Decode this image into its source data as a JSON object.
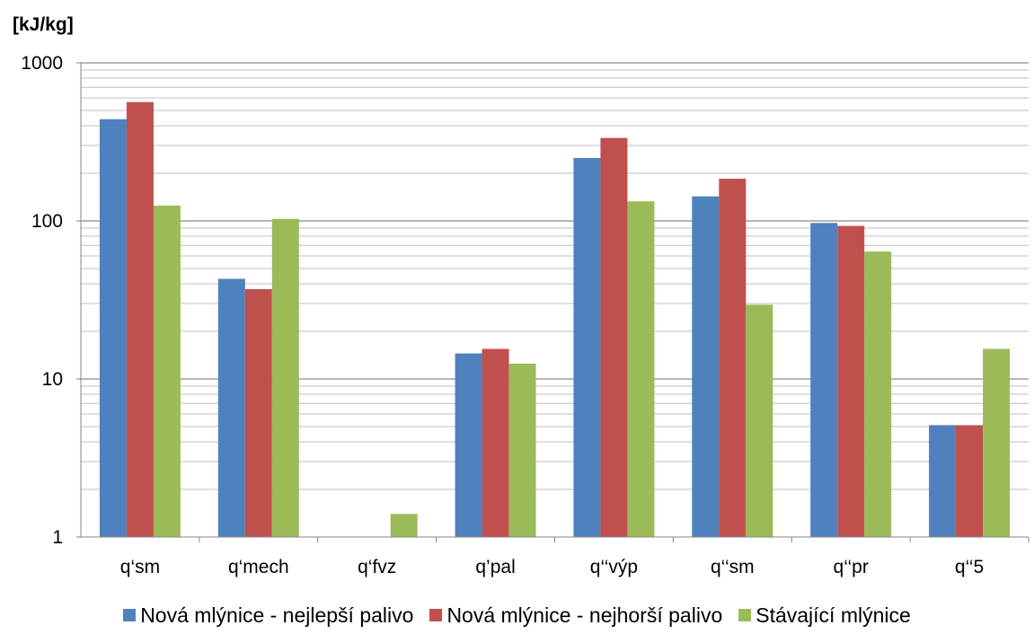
{
  "chart_data": {
    "type": "bar",
    "ylabel": "[kJ/kg]",
    "yscale": "log",
    "ylim": [
      1,
      1000
    ],
    "yticks": [
      "1",
      "10",
      "100",
      "1000"
    ],
    "grid": true,
    "legend_position": "bottom",
    "categories": [
      "q‘sm",
      "q‘mech",
      "q‘fvz",
      "q’pal",
      "q‘‘výp",
      "q‘‘sm",
      "q‘‘pr",
      "q‘‘5"
    ],
    "series": [
      {
        "name": "Nová mlýnice - nejlepší palivo",
        "color": "#4F81BD",
        "values": [
          440,
          43,
          null,
          14.5,
          250,
          143,
          97,
          5.1
        ]
      },
      {
        "name": "Nová mlýnice - nejhorší palivo",
        "color": "#C0504D",
        "values": [
          565,
          37,
          null,
          15.5,
          335,
          185,
          93,
          5.1
        ]
      },
      {
        "name": "Stávající mlýnice",
        "color": "#9BBB59",
        "values": [
          125,
          103,
          1.4,
          12.5,
          133,
          29.5,
          64,
          15.5
        ]
      }
    ]
  }
}
